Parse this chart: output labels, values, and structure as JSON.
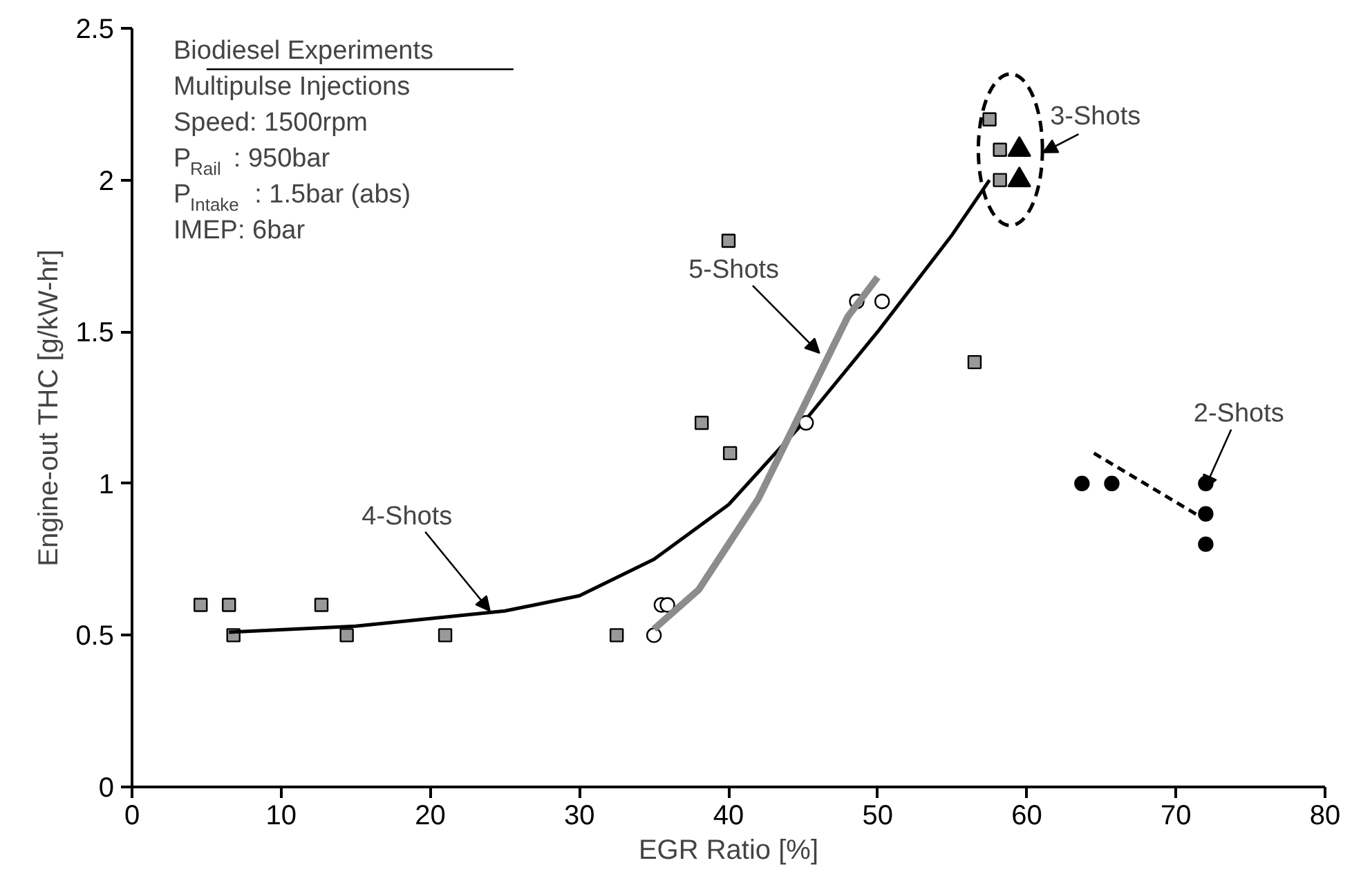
{
  "chart_data": {
    "type": "scatter",
    "xlabel": "EGR Ratio [%]",
    "ylabel": "Engine-out THC [g/kW-hr]",
    "xlim": [
      0,
      80
    ],
    "xticks": [
      0,
      10,
      20,
      30,
      40,
      50,
      60,
      70,
      80
    ],
    "ylim": [
      0,
      2.5
    ],
    "yticks": [
      0,
      0.5,
      1,
      1.5,
      2,
      2.5
    ],
    "grid": false,
    "series": [
      {
        "marker": "square",
        "color": "#999999",
        "x": [
          4.6,
          6.5,
          12.7,
          6.8,
          14.4,
          21,
          32.5,
          38.2,
          40.1,
          40,
          56.5,
          57.5,
          58.2,
          58.2
        ],
        "values": [
          0.6,
          0.6,
          0.6,
          0.5,
          0.5,
          0.5,
          0.5,
          1.2,
          1.1,
          1.8,
          1.4,
          2.2,
          2.1,
          2.0
        ]
      },
      {
        "type": "line",
        "line_style": "solid",
        "color": "#000000",
        "x": [
          6.5,
          15,
          25,
          30,
          35,
          40,
          45,
          50,
          55,
          57.5
        ],
        "values": [
          0.51,
          0.53,
          0.58,
          0.63,
          0.75,
          0.93,
          1.2,
          1.5,
          1.82,
          2.0
        ]
      },
      {
        "marker": "circle",
        "color": "#ffffff",
        "x": [
          35,
          35.5,
          35.9,
          45.2,
          48.6,
          50.3
        ],
        "values": [
          0.5,
          0.6,
          0.6,
          1.2,
          1.6,
          1.6
        ]
      },
      {
        "type": "line",
        "line_style": "solid",
        "color": "#8c8c8c",
        "x": [
          35,
          38,
          42,
          45,
          48,
          50
        ],
        "values": [
          0.52,
          0.65,
          0.95,
          1.25,
          1.55,
          1.68
        ]
      },
      {
        "marker": "triangle",
        "color": "#000000",
        "x": [
          59.5,
          59.5
        ],
        "values": [
          2.1,
          2.0
        ]
      },
      {
        "marker": "circle",
        "color": "#000000",
        "x": [
          63.7,
          65.7,
          72,
          72,
          72
        ],
        "values": [
          1.0,
          1.0,
          1.0,
          0.9,
          0.8
        ]
      },
      {
        "type": "line",
        "line_style": "dashed",
        "color": "#000000",
        "x": [
          64.5,
          72
        ],
        "values": [
          1.1,
          0.88
        ]
      }
    ],
    "annotations": [
      "Biodiesel Experiments",
      "Multipulse Injections",
      "Speed: 1500rpm",
      "P$_{Rail}$: 950bar",
      "P$_{Intake}$: 1.5bar (abs)",
      "IMEP: 6bar",
      {
        "text": "4-Shots",
        "x": 24,
        "y": 0.58
      },
      {
        "text": "5-Shots",
        "x": 46.1,
        "y": 1.43
      },
      {
        "text": "3-Shots",
        "x": 59.5,
        "y": 2.05
      },
      {
        "text": "2-Shots",
        "x": 71.9,
        "y": 0.98
      }
    ]
  }
}
